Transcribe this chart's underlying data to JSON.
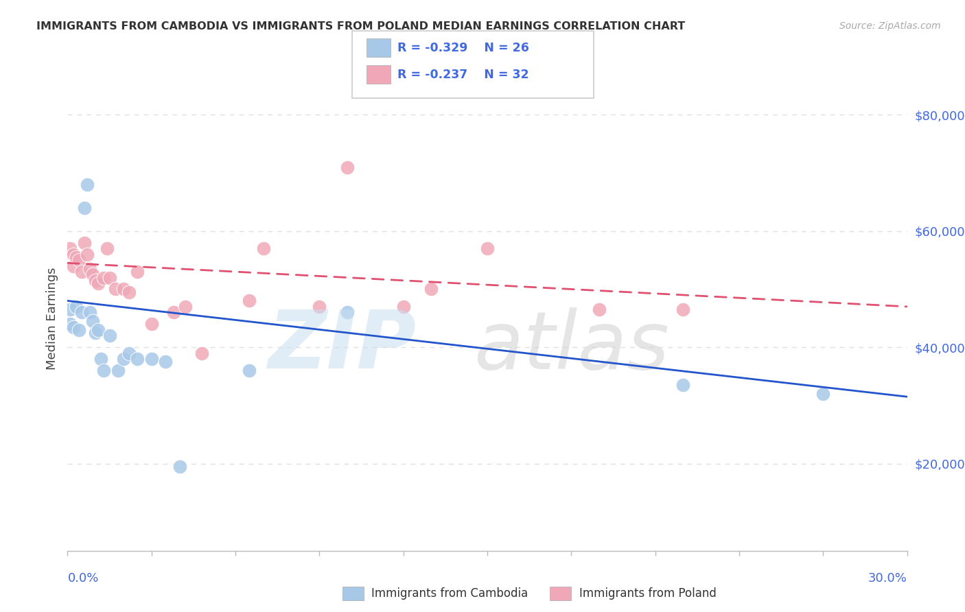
{
  "title": "IMMIGRANTS FROM CAMBODIA VS IMMIGRANTS FROM POLAND MEDIAN EARNINGS CORRELATION CHART",
  "source": "Source: ZipAtlas.com",
  "ylabel": "Median Earnings",
  "xmin": 0.0,
  "xmax": 0.3,
  "ymin": 5000,
  "ymax": 85000,
  "yticks": [
    20000,
    40000,
    60000,
    80000
  ],
  "ytick_labels": [
    "$20,000",
    "$40,000",
    "$60,000",
    "$80,000"
  ],
  "cambodia_color": "#a8c8e8",
  "poland_color": "#f0a8b8",
  "cambodia_line_color": "#2255cc",
  "poland_line_color": "#e05070",
  "legend_R_cambodia": "R = -0.329",
  "legend_N_cambodia": "N = 26",
  "legend_R_poland": "R = -0.237",
  "legend_N_poland": "N = 32",
  "cambodia_points_x": [
    0.001,
    0.001,
    0.002,
    0.003,
    0.004,
    0.005,
    0.006,
    0.007,
    0.008,
    0.009,
    0.01,
    0.011,
    0.012,
    0.013,
    0.015,
    0.018,
    0.02,
    0.022,
    0.025,
    0.03,
    0.035,
    0.04,
    0.065,
    0.1,
    0.22,
    0.27
  ],
  "cambodia_points_y": [
    46500,
    44000,
    43500,
    47000,
    43000,
    46000,
    64000,
    68000,
    46000,
    44500,
    42500,
    43000,
    38000,
    36000,
    42000,
    36000,
    38000,
    39000,
    38000,
    38000,
    37500,
    19500,
    36000,
    46000,
    33500,
    32000
  ],
  "poland_points_x": [
    0.001,
    0.002,
    0.002,
    0.003,
    0.004,
    0.005,
    0.006,
    0.007,
    0.008,
    0.009,
    0.01,
    0.011,
    0.013,
    0.014,
    0.015,
    0.017,
    0.02,
    0.022,
    0.025,
    0.03,
    0.038,
    0.042,
    0.048,
    0.065,
    0.07,
    0.09,
    0.1,
    0.12,
    0.13,
    0.15,
    0.19,
    0.22
  ],
  "poland_points_y": [
    57000,
    56000,
    54000,
    55500,
    55000,
    53000,
    58000,
    56000,
    53500,
    52500,
    51500,
    51000,
    52000,
    57000,
    52000,
    50000,
    50000,
    49500,
    53000,
    44000,
    46000,
    47000,
    39000,
    48000,
    57000,
    47000,
    71000,
    47000,
    50000,
    57000,
    46500,
    46500
  ],
  "cambodia_trend_x": [
    0.0,
    0.3
  ],
  "cambodia_trend_y": [
    48000,
    31500
  ],
  "poland_trend_x": [
    0.0,
    0.3
  ],
  "poland_trend_y": [
    54500,
    47000
  ],
  "background_color": "#ffffff",
  "grid_color": "#e0e0e0",
  "text_color_blue": "#4169E1",
  "watermark1": "ZIP",
  "watermark2": "atl",
  "watermark3": "as",
  "watermark1_color": "#c8dff0",
  "watermark2_color": "#d0d0d0"
}
